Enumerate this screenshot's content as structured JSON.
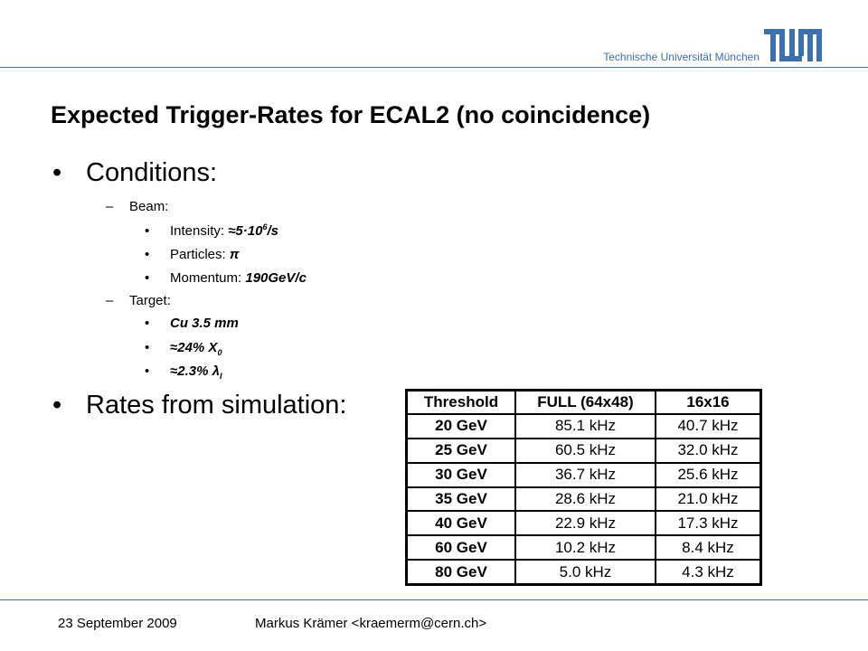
{
  "header": {
    "institution": "Technische Universität München",
    "logo_text": "TUM",
    "accent_color": "#3d6fb3"
  },
  "title": "Expected Trigger-Rates for ECAL2 (no coincidence)",
  "conditions": {
    "heading": "Conditions:",
    "beam": {
      "label": "Beam:",
      "intensity_label": "Intensity: ",
      "intensity_value": "≈5·10",
      "intensity_exp": "6",
      "intensity_unit": "/s",
      "particles_label": "Particles: ",
      "particles_value": "π",
      "momentum_label": "Momentum: ",
      "momentum_value": "190GeV/c"
    },
    "target": {
      "label": "Target:",
      "material": "Cu 3.5 mm",
      "radiation_value": "≈24% X",
      "radiation_sub": "0",
      "interaction_value": "≈2.3% λ",
      "interaction_sub": "I"
    }
  },
  "rates": {
    "heading": "Rates from simulation:",
    "columns": [
      "Threshold",
      "FULL (64x48)",
      "16x16"
    ],
    "rows": [
      [
        "20 GeV",
        "85.1 kHz",
        "40.7 kHz"
      ],
      [
        "25 GeV",
        "60.5 kHz",
        "32.0 kHz"
      ],
      [
        "30 GeV",
        "36.7 kHz",
        "25.6 kHz"
      ],
      [
        "35 GeV",
        "28.6 kHz",
        "21.0 kHz"
      ],
      [
        "40 GeV",
        "22.9 kHz",
        "17.3 kHz"
      ],
      [
        "60 GeV",
        "10.2 kHz",
        "8.4 kHz"
      ],
      [
        "80 GeV",
        "5.0 kHz",
        "4.3 kHz"
      ]
    ]
  },
  "footer": {
    "date": "23 September 2009",
    "author": "Markus Krämer <kraemerm@cern.ch>"
  }
}
